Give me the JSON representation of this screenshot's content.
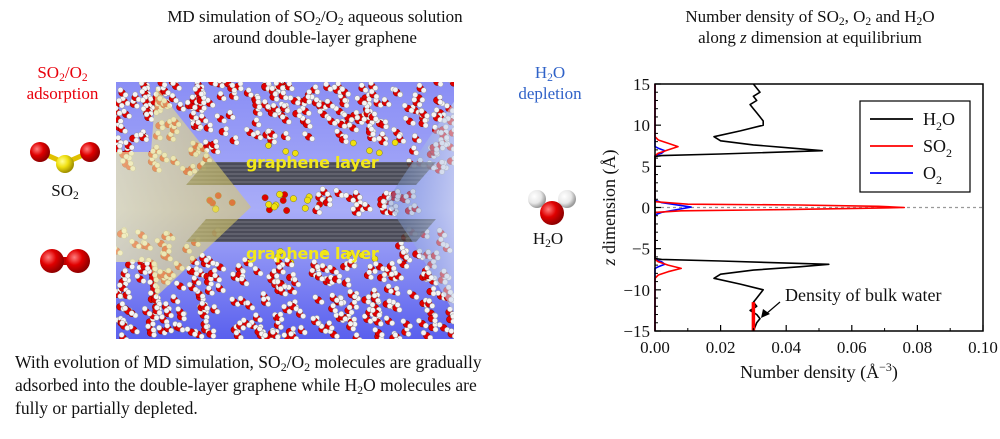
{
  "left_panel": {
    "title_line1_a": "MD simulation of SO",
    "title_line1_sub1": "2",
    "title_line1_b": "/O",
    "title_line1_sub2": "2",
    "title_line1_c": " aqueous solution",
    "title_line2": "around double-layer graphene",
    "adsorption_a": "SO",
    "adsorption_sub1": "2",
    "adsorption_b": "/O",
    "adsorption_sub2": "2",
    "adsorption_line2": "adsorption",
    "depletion_a": "H",
    "depletion_sub": "2",
    "depletion_b": "O",
    "depletion_line2": "depletion",
    "so2_a": "SO",
    "so2_sub": "2",
    "h2o_a": "H",
    "h2o_sub": "2",
    "h2o_b": "O",
    "graphene_top": "graphene layer",
    "graphene_bottom": "graphene layer",
    "caption_l1_a": "With evolution of MD simulation, SO",
    "caption_l1_sub1": "2",
    "caption_l1_b": "/O",
    "caption_l1_sub2": "2",
    "caption_l1_c": " molecules are gradually",
    "caption_l2_a": "adsorbed into the double-layer graphene while H",
    "caption_l2_sub": "2",
    "caption_l2_b": "O molecules are",
    "caption_l3": "fully or partially depleted.",
    "colors": {
      "adsorption": "#e8000b",
      "depletion": "#2f62c8",
      "oxygen": "#e00000",
      "sulfur": "#f0e010",
      "hydrogen": "#f4f4f4",
      "water_bg": "#6a70f0"
    }
  },
  "chart_data": {
    "type": "line",
    "title_line1_a": "Number density of SO",
    "title_line1_sub1": "2",
    "title_line1_b": ", O",
    "title_line1_sub2": "2",
    "title_line1_c": " and H",
    "title_line1_sub3": "2",
    "title_line1_d": "O",
    "title_line2_a": "along ",
    "title_line2_italic": "z",
    "title_line2_b": " dimension at equilibrium",
    "xlabel_a": "Number density (Å",
    "xlabel_sup": "−3",
    "xlabel_b": ")",
    "ylabel_italic": "z",
    "ylabel_rest": " dimension (Å)",
    "xlim": [
      0,
      0.1
    ],
    "ylim": [
      -15,
      15
    ],
    "xticks": [
      "0.00",
      "0.02",
      "0.04",
      "0.06",
      "0.08",
      "0.10"
    ],
    "xtick_values": [
      0,
      0.02,
      0.04,
      0.06,
      0.08,
      0.1
    ],
    "yticks": [
      "15",
      "10",
      "5",
      "0",
      "−5",
      "−10",
      "−15"
    ],
    "ytick_values": [
      15,
      10,
      5,
      0,
      -5,
      -10,
      -15
    ],
    "legend_position": "top-right",
    "annotation": "Density of bulk water",
    "reference_line_y": 0,
    "series": [
      {
        "name": "H2O",
        "label_a": "H",
        "label_sub": "2",
        "label_b": "O",
        "color": "#000000",
        "points": [
          [
            0.03,
            15
          ],
          [
            0.031,
            14.5
          ],
          [
            0.032,
            14
          ],
          [
            0.03,
            13.5
          ],
          [
            0.031,
            13
          ],
          [
            0.029,
            12.5
          ],
          [
            0.03,
            12
          ],
          [
            0.031,
            11.5
          ],
          [
            0.032,
            11
          ],
          [
            0.033,
            10.5
          ],
          [
            0.033,
            10
          ],
          [
            0.026,
            9.3
          ],
          [
            0.018,
            8.6
          ],
          [
            0.02,
            8.1
          ],
          [
            0.03,
            7.6
          ],
          [
            0.042,
            7.2
          ],
          [
            0.051,
            6.9
          ],
          [
            0.02,
            6.5
          ],
          [
            0.002,
            6.3
          ],
          [
            0,
            6.2
          ],
          [
            0,
            -6.2
          ],
          [
            0.002,
            -6.3
          ],
          [
            0.02,
            -6.5
          ],
          [
            0.053,
            -6.9
          ],
          [
            0.044,
            -7.2
          ],
          [
            0.03,
            -7.6
          ],
          [
            0.02,
            -8.1
          ],
          [
            0.018,
            -8.6
          ],
          [
            0.026,
            -9.3
          ],
          [
            0.033,
            -10
          ],
          [
            0.032,
            -10.5
          ],
          [
            0.031,
            -11
          ],
          [
            0.03,
            -11.5
          ],
          [
            0.031,
            -12
          ],
          [
            0.029,
            -12.5
          ],
          [
            0.031,
            -13
          ],
          [
            0.032,
            -13.5
          ],
          [
            0.031,
            -14
          ],
          [
            0.03,
            -15
          ]
        ]
      },
      {
        "name": "SO2",
        "label_a": "SO",
        "label_sub": "2",
        "label_b": "",
        "color": "#ff0000",
        "points": [
          [
            0,
            15
          ],
          [
            0,
            8.6
          ],
          [
            0.001,
            8.2
          ],
          [
            0.004,
            7.8
          ],
          [
            0.007,
            7.4
          ],
          [
            0.004,
            7.0
          ],
          [
            0.001,
            6.6
          ],
          [
            0,
            6.3
          ],
          [
            0,
            0.7
          ],
          [
            0.01,
            0.4
          ],
          [
            0.044,
            0.3
          ],
          [
            0.068,
            0.15
          ],
          [
            0.076,
            0
          ],
          [
            0.063,
            -0.1
          ],
          [
            0.04,
            -0.25
          ],
          [
            0.008,
            -0.4
          ],
          [
            0,
            -0.6
          ],
          [
            0,
            -6.3
          ],
          [
            0.001,
            -6.6
          ],
          [
            0.004,
            -7.0
          ],
          [
            0.008,
            -7.4
          ],
          [
            0.004,
            -7.8
          ],
          [
            0.001,
            -8.2
          ],
          [
            0,
            -8.6
          ],
          [
            0,
            -15
          ]
        ]
      },
      {
        "name": "O2",
        "label_a": "O",
        "label_sub": "2",
        "label_b": "",
        "color": "#0000ff",
        "points": [
          [
            0,
            15
          ],
          [
            0,
            7.4
          ],
          [
            0.001,
            7.2
          ],
          [
            0.003,
            6.9
          ],
          [
            0.002,
            6.6
          ],
          [
            0,
            6.3
          ],
          [
            0,
            0.9
          ],
          [
            0.002,
            0.6
          ],
          [
            0.006,
            0.35
          ],
          [
            0.011,
            0.05
          ],
          [
            0.006,
            -0.3
          ],
          [
            0.002,
            -0.6
          ],
          [
            0,
            -0.9
          ],
          [
            0,
            -6.3
          ],
          [
            0.002,
            -6.6
          ],
          [
            0.003,
            -6.9
          ],
          [
            0.001,
            -7.2
          ],
          [
            0,
            -7.4
          ],
          [
            0,
            -15
          ]
        ]
      }
    ],
    "bulk_water_marker": {
      "x": 0.03,
      "y_from": -11.5,
      "y_to": -15,
      "color": "#ff0000"
    }
  }
}
